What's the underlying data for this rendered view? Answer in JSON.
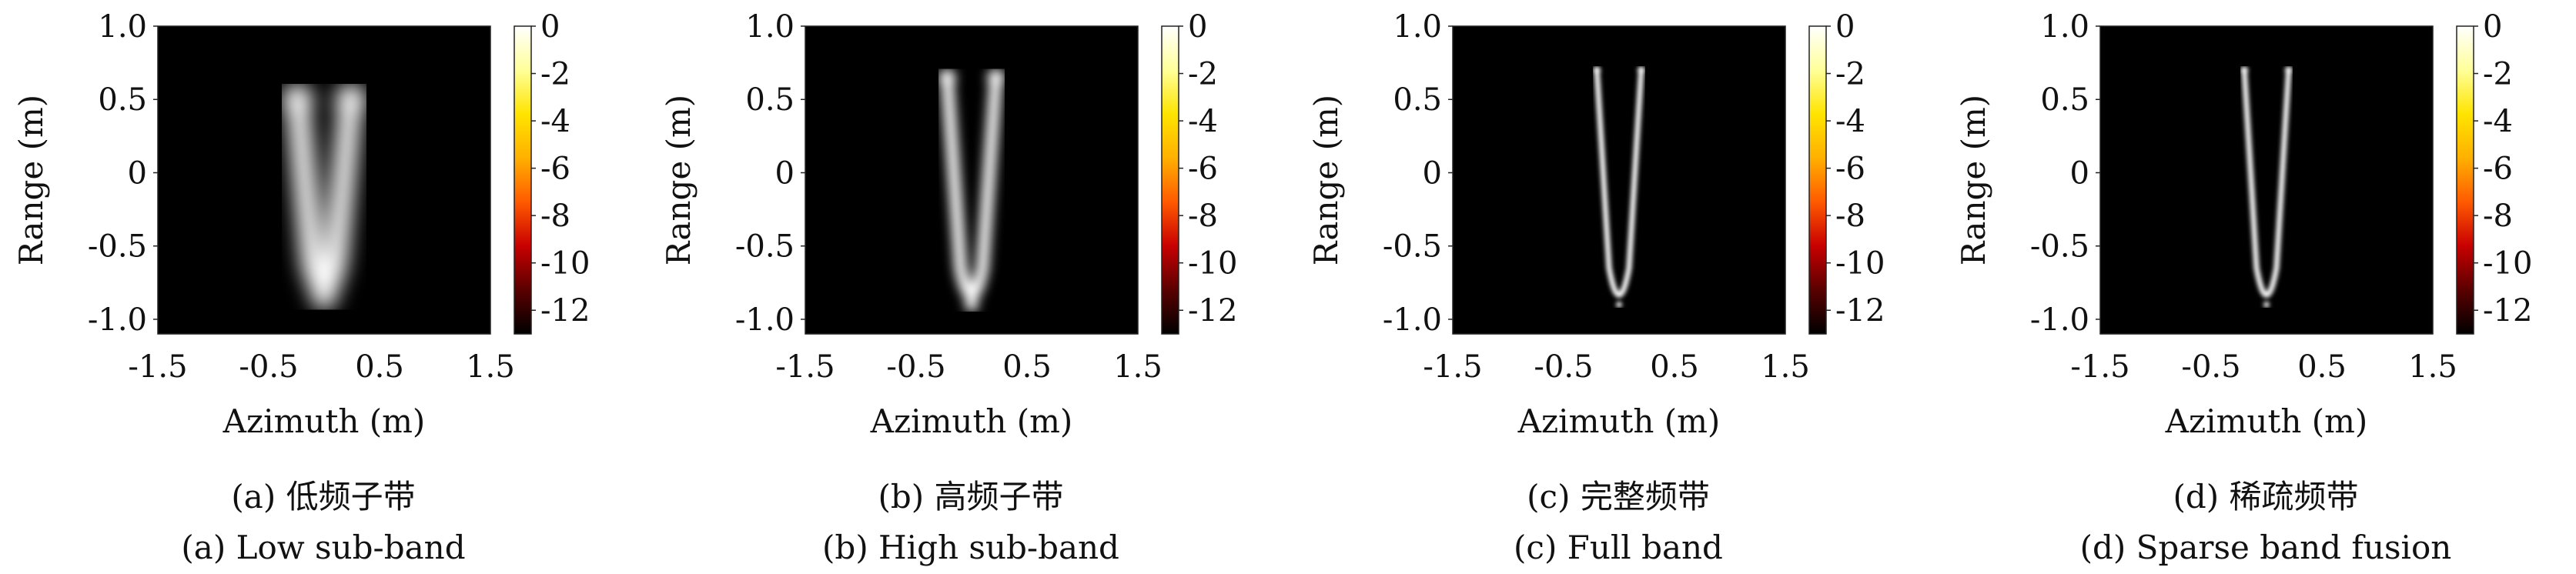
{
  "colormap": {
    "stops": [
      "#000000",
      "#5a0000",
      "#c80000",
      "#ff5a00",
      "#ffb000",
      "#ffe400",
      "#ffff9a",
      "#ffffff"
    ],
    "range": [
      -13,
      0
    ],
    "ticks": [
      "0",
      "-2",
      "-4",
      "-6",
      "-8",
      "-10",
      "-12"
    ],
    "tick_values": [
      0,
      -2,
      -4,
      -6,
      -8,
      -10,
      -12
    ]
  },
  "chart_data": [
    {
      "type": "heatmap",
      "caption_cn": "(a) 低频子带",
      "caption_en": "(a) Low sub-band",
      "xlabel": "Azimuth (m)",
      "ylabel": "Range (m)",
      "xlim": [
        -1.5,
        1.5
      ],
      "ylim": [
        -1.1,
        1.0
      ],
      "xticks": [
        "-1.5",
        "-0.5",
        "0.5",
        "1.5"
      ],
      "xtick_values": [
        -1.5,
        -0.5,
        0.5,
        1.5
      ],
      "yticks": [
        "1.0",
        "0.5",
        "0",
        "-0.5",
        "-1.0"
      ],
      "ytick_values": [
        1.0,
        0.5,
        0,
        -0.5,
        -1.0
      ],
      "clim": [
        -13,
        0
      ],
      "shape": "V-shaped target, wide blurred arms from (-0.2, 0.5) and (0.2, 0.5) meeting near (0, -0.85)",
      "arm_x": 0.24,
      "top_y": 0.5,
      "bottom_y": -0.85,
      "blur_m": 0.09
    },
    {
      "type": "heatmap",
      "caption_cn": "(b) 高频子带",
      "caption_en": "(b) High sub-band",
      "xlabel": "Azimuth (m)",
      "ylabel": "Range (m)",
      "xlim": [
        -1.5,
        1.5
      ],
      "ylim": [
        -1.1,
        1.0
      ],
      "xticks": [
        "-1.5",
        "-0.5",
        "0.5",
        "1.5"
      ],
      "xtick_values": [
        -1.5,
        -0.5,
        0.5,
        1.5
      ],
      "yticks": [
        "1.0",
        "0.5",
        "0",
        "-0.5",
        "-1.0"
      ],
      "ytick_values": [
        1.0,
        0.5,
        0,
        -0.5,
        -1.0
      ],
      "clim": [
        -13,
        0
      ],
      "shape": "V-shaped target, narrower arms with bright spot near (0, -0.9)",
      "arm_x": 0.22,
      "top_y": 0.65,
      "bottom_y": -0.9,
      "blur_m": 0.05
    },
    {
      "type": "heatmap",
      "caption_cn": "(c) 完整频带",
      "caption_en": "(c) Full band",
      "xlabel": "Azimuth (m)",
      "ylabel": "Range (m)",
      "xlim": [
        -1.5,
        1.5
      ],
      "ylim": [
        -1.1,
        1.0
      ],
      "xticks": [
        "-1.5",
        "-0.5",
        "0.5",
        "1.5"
      ],
      "xtick_values": [
        -1.5,
        -0.5,
        0.5,
        1.5
      ],
      "yticks": [
        "1.0",
        "0.5",
        "0",
        "-0.5",
        "-1.0"
      ],
      "ytick_values": [
        1.0,
        0.5,
        0,
        -0.5,
        -1.0
      ],
      "clim": [
        -13,
        0
      ],
      "shape": "Thin focused U-shaped target from (-0.2, 0.7) and (0.2, 0.7) to (0, -0.9)",
      "arm_x": 0.2,
      "top_y": 0.7,
      "bottom_y": -0.9,
      "blur_m": 0.02
    },
    {
      "type": "heatmap",
      "caption_cn": "(d) 稀疏频带",
      "caption_en": "(d) Sparse band fusion",
      "xlabel": "Azimuth (m)",
      "ylabel": "Range (m)",
      "xlim": [
        -1.5,
        1.5
      ],
      "ylim": [
        -1.1,
        1.0
      ],
      "xticks": [
        "-1.5",
        "-0.5",
        "0.5",
        "1.5"
      ],
      "xtick_values": [
        -1.5,
        -0.5,
        0.5,
        1.5
      ],
      "yticks": [
        "1.0",
        "0.5",
        "0",
        "-0.5",
        "-1.0"
      ],
      "ytick_values": [
        1.0,
        0.5,
        0,
        -0.5,
        -1.0
      ],
      "clim": [
        -13,
        0
      ],
      "shape": "Thin focused U-shaped target from (-0.2, 0.7) and (0.2, 0.7) to (0, -0.9)",
      "arm_x": 0.2,
      "top_y": 0.7,
      "bottom_y": -0.9,
      "blur_m": 0.02
    }
  ]
}
